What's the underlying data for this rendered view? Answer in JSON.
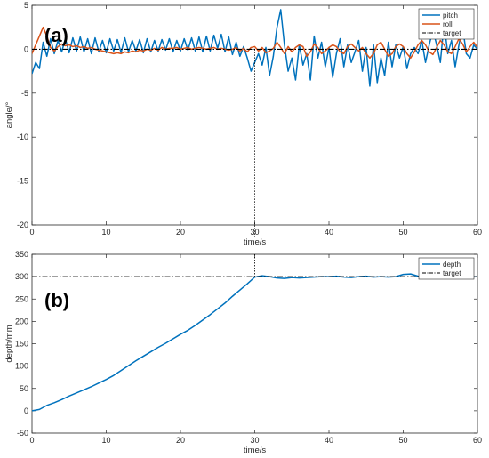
{
  "chart_data": [
    {
      "type": "line",
      "panel_label": "(a)",
      "title": "",
      "xlabel": "time/s",
      "ylabel": "angle/°",
      "xlim": [
        0,
        60
      ],
      "ylim": [
        -20,
        5
      ],
      "xticks": [
        0,
        10,
        20,
        30,
        40,
        50,
        60
      ],
      "yticks": [
        -20,
        -15,
        -10,
        -5,
        0,
        5
      ],
      "grid": false,
      "legend": "top-right",
      "annotations": [
        {
          "type": "vertical-dotted-line",
          "x": 30
        }
      ],
      "series": [
        {
          "name": "pitch",
          "color": "#0072BD",
          "style": "solid",
          "x": [
            0,
            0.5,
            1,
            1.5,
            2,
            2.5,
            3,
            3.5,
            4,
            4.5,
            5,
            5.5,
            6,
            6.5,
            7,
            7.5,
            8,
            8.5,
            9,
            9.5,
            10,
            10.5,
            11,
            11.5,
            12,
            12.5,
            13,
            13.5,
            14,
            14.5,
            15,
            15.5,
            16,
            16.5,
            17,
            17.5,
            18,
            18.5,
            19,
            19.5,
            20,
            20.5,
            21,
            21.5,
            22,
            22.5,
            23,
            23.5,
            24,
            24.5,
            25,
            25.5,
            26,
            26.5,
            27,
            27.5,
            28,
            28.5,
            29,
            29.5,
            30,
            30.5,
            31,
            31.5,
            32,
            32.5,
            33,
            33.5,
            34,
            34.5,
            35,
            35.5,
            36,
            36.5,
            37,
            37.5,
            38,
            38.5,
            39,
            39.5,
            40,
            40.5,
            41,
            41.5,
            42,
            42.5,
            43,
            43.5,
            44,
            44.5,
            45,
            45.5,
            46,
            46.5,
            47,
            47.5,
            48,
            48.5,
            49,
            49.5,
            50,
            50.5,
            51,
            51.5,
            52,
            52.5,
            53,
            53.5,
            54,
            54.5,
            55,
            55.5,
            56,
            56.5,
            57,
            57.5,
            58,
            58.5,
            59,
            59.5,
            60
          ],
          "values": [
            -2.8,
            -1.5,
            -2.2,
            0.8,
            -0.8,
            1.2,
            -0.5,
            1.0,
            -0.3,
            1.2,
            -0.4,
            1.3,
            -0.2,
            1.4,
            -0.3,
            1.2,
            -0.5,
            1.3,
            -0.3,
            1.0,
            -0.4,
            1.2,
            -0.2,
            1.1,
            -0.4,
            1.3,
            -0.3,
            1.0,
            -0.2,
            1.1,
            -0.4,
            1.2,
            -0.3,
            1.0,
            -0.2,
            1.1,
            -0.1,
            1.2,
            -0.3,
            1.0,
            -0.2,
            1.2,
            -0.1,
            1.3,
            -0.2,
            1.4,
            -0.3,
            1.5,
            -0.2,
            1.6,
            0.1,
            1.7,
            -0.3,
            1.4,
            -0.6,
            0.8,
            -0.8,
            0.3,
            -1.0,
            -2.5,
            -1.5,
            -0.5,
            -1.8,
            0.2,
            -3.0,
            -0.8,
            2.5,
            4.5,
            0.5,
            -2.5,
            -1.0,
            -3.5,
            0.5,
            -1.8,
            -0.5,
            -3.5,
            1.5,
            -1.0,
            0.8,
            -2.0,
            0.2,
            -3.2,
            -0.5,
            1.2,
            -2.0,
            0.5,
            -1.5,
            -0.3,
            1.0,
            -2.5,
            0.2,
            -4.2,
            0.5,
            -3.8,
            -1.0,
            -3.0,
            0.8,
            -2.0,
            0.5,
            -1.0,
            0.3,
            -2.2,
            -0.5,
            0.2,
            -0.5,
            1.0,
            -1.5,
            0.5,
            2.2,
            0.5,
            -1.5,
            3.0,
            -0.5,
            1.0,
            -2.0,
            0.5,
            2.5,
            -0.5,
            -1.0,
            0.5,
            0.0
          ]
        },
        {
          "name": "roll",
          "color": "#D95319",
          "style": "solid",
          "x": [
            0,
            0.5,
            1,
            1.5,
            2,
            2.5,
            3,
            3.5,
            4,
            4.5,
            5,
            5.5,
            6,
            6.5,
            7,
            7.5,
            8,
            8.5,
            9,
            9.5,
            10,
            10.5,
            11,
            11.5,
            12,
            12.5,
            13,
            13.5,
            14,
            14.5,
            15,
            15.5,
            16,
            16.5,
            17,
            17.5,
            18,
            18.5,
            19,
            19.5,
            20,
            20.5,
            21,
            21.5,
            22,
            22.5,
            23,
            23.5,
            24,
            24.5,
            25,
            25.5,
            26,
            26.5,
            27,
            27.5,
            28,
            28.5,
            29,
            29.5,
            30,
            30.5,
            31,
            31.5,
            32,
            32.5,
            33,
            33.5,
            34,
            34.5,
            35,
            35.5,
            36,
            36.5,
            37,
            37.5,
            38,
            38.5,
            39,
            39.5,
            40,
            40.5,
            41,
            41.5,
            42,
            42.5,
            43,
            43.5,
            44,
            44.5,
            45,
            45.5,
            46,
            46.5,
            47,
            47.5,
            48,
            48.5,
            49,
            49.5,
            50,
            50.5,
            51,
            51.5,
            52,
            52.5,
            53,
            53.5,
            54,
            54.5,
            55,
            55.5,
            56,
            56.5,
            57,
            57.5,
            58,
            58.5,
            59,
            59.5,
            60
          ],
          "values": [
            -0.5,
            0.5,
            1.5,
            2.5,
            1.5,
            0.2,
            -0.2,
            0.3,
            0.6,
            0.4,
            0.5,
            0.3,
            0.4,
            0.2,
            0.3,
            0.1,
            0.2,
            0.0,
            -0.1,
            -0.2,
            -0.3,
            -0.4,
            -0.5,
            -0.4,
            -0.5,
            -0.3,
            -0.4,
            -0.2,
            -0.3,
            -0.1,
            -0.2,
            0.0,
            -0.1,
            0.1,
            -0.1,
            0.2,
            0.0,
            0.1,
            0.1,
            0.2,
            0.0,
            0.1,
            0.2,
            0.0,
            0.1,
            0.2,
            0.1,
            0.0,
            0.1,
            0.2,
            0.0,
            0.1,
            0.0,
            -0.1,
            0.0,
            0.2,
            -0.2,
            0.1,
            -0.3,
            0.2,
            0.3,
            -0.2,
            0.2,
            -0.4,
            -0.2,
            0.1,
            0.8,
            0.2,
            -0.5,
            0.3,
            -0.3,
            0.2,
            0.5,
            0.3,
            -0.8,
            -0.3,
            0.6,
            0.2,
            -0.5,
            -0.2,
            0.2,
            0.5,
            0.3,
            -0.3,
            -0.5,
            0.3,
            0.6,
            0.2,
            -0.2,
            0.2,
            -0.5,
            -1.0,
            -0.5,
            0.5,
            0.8,
            0.0,
            -0.8,
            -0.5,
            0.3,
            0.6,
            0.3,
            -0.5,
            -1.0,
            -0.3,
            0.5,
            1.0,
            0.5,
            -0.3,
            -0.6,
            0.2,
            1.0,
            0.5,
            -0.3,
            -0.5,
            0.3,
            1.2,
            0.6,
            -0.3,
            0.3,
            0.8,
            0.2
          ]
        },
        {
          "name": "target",
          "color": "#000000",
          "style": "dash-dot",
          "x": [
            0,
            60
          ],
          "values": [
            0,
            0
          ]
        }
      ]
    },
    {
      "type": "line",
      "panel_label": "(b)",
      "title": "",
      "xlabel": "time/s",
      "ylabel": "depth/mm",
      "xlim": [
        0,
        60
      ],
      "ylim": [
        -50,
        350
      ],
      "xticks": [
        0,
        10,
        20,
        30,
        40,
        50,
        60
      ],
      "yticks": [
        -50,
        0,
        50,
        100,
        150,
        200,
        250,
        300,
        350
      ],
      "grid": false,
      "legend": "top-right",
      "annotations": [
        {
          "type": "vertical-dotted-line",
          "x": 30
        }
      ],
      "series": [
        {
          "name": "depth",
          "color": "#0072BD",
          "style": "solid",
          "x": [
            0,
            1,
            2,
            3,
            4,
            5,
            6,
            7,
            8,
            9,
            10,
            11,
            12,
            13,
            14,
            15,
            16,
            17,
            18,
            19,
            20,
            21,
            22,
            23,
            24,
            25,
            26,
            27,
            28,
            29,
            30,
            31,
            32,
            33,
            34,
            35,
            36,
            37,
            38,
            39,
            40,
            41,
            42,
            43,
            44,
            45,
            46,
            47,
            48,
            49,
            50,
            51,
            52,
            53,
            54,
            55,
            56,
            57,
            58,
            59,
            60
          ],
          "values": [
            0,
            3,
            12,
            18,
            25,
            33,
            40,
            47,
            54,
            62,
            70,
            79,
            90,
            101,
            112,
            122,
            132,
            142,
            151,
            161,
            171,
            180,
            191,
            203,
            215,
            228,
            241,
            256,
            270,
            284,
            299,
            302,
            300,
            297,
            296,
            298,
            297,
            298,
            299,
            300,
            300,
            301,
            299,
            298,
            300,
            301,
            299,
            300,
            299,
            300,
            305,
            306,
            301,
            299,
            300,
            299,
            300,
            301,
            300,
            299,
            300
          ]
        },
        {
          "name": "target",
          "color": "#000000",
          "style": "dash-dot",
          "x": [
            0,
            60
          ],
          "values": [
            300,
            300
          ]
        }
      ]
    }
  ]
}
